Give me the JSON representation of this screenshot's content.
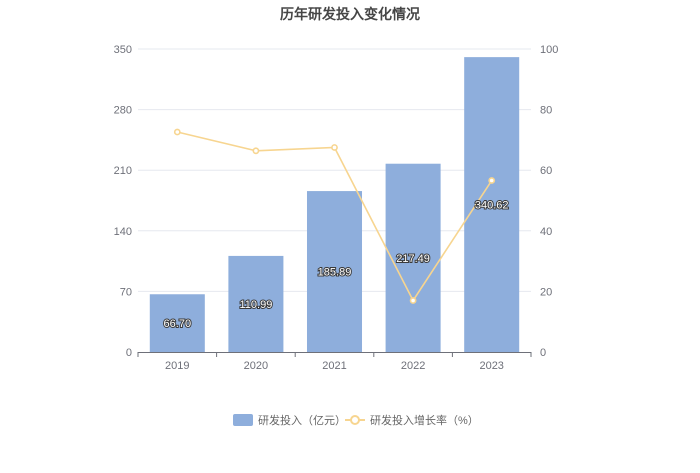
{
  "chart_data": {
    "type": "bar",
    "title": "历年研发投入变化情况",
    "categories": [
      "2019",
      "2020",
      "2021",
      "2022",
      "2023"
    ],
    "series": [
      {
        "name": "研发投入（亿元）",
        "type": "bar",
        "axis": "left",
        "values": [
          66.7,
          110.99,
          185.89,
          217.49,
          340.62
        ],
        "labels": [
          "66.70",
          "110.99",
          "185.89",
          "217.49",
          "340.62"
        ],
        "color": "#8eaedc"
      },
      {
        "name": "研发投入增长率（%）",
        "type": "line",
        "axis": "right",
        "values": [
          72.6,
          66.4,
          67.5,
          17.0,
          56.6
        ],
        "color": "#f7d590"
      }
    ],
    "y_left": {
      "range": [
        0,
        350
      ],
      "ticks": [
        "0",
        "70",
        "140",
        "210",
        "280",
        "350"
      ]
    },
    "y_right": {
      "range": [
        0,
        100
      ],
      "ticks": [
        "0",
        "20",
        "40",
        "60",
        "80",
        "100"
      ]
    },
    "grid": true,
    "legend": "bottom-center",
    "colors": {
      "grid": "#e6e8ef",
      "axis": "#6e7079"
    }
  }
}
